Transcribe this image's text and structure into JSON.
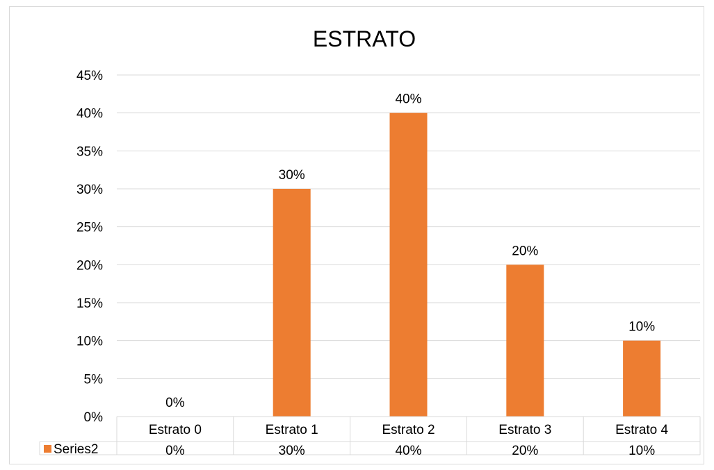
{
  "chart_data": {
    "type": "bar",
    "title": "ESTRATO",
    "categories": [
      "Estrato 0",
      "Estrato 1",
      "Estrato 2",
      "Estrato 3",
      "Estrato 4"
    ],
    "series": [
      {
        "name": "Series2",
        "values": [
          0,
          30,
          40,
          20,
          10
        ],
        "data_labels": [
          "0%",
          "30%",
          "40%",
          "20%",
          "10%"
        ],
        "color": "#ED7D31"
      }
    ],
    "ylim": [
      0,
      45
    ],
    "yticks": [
      0,
      5,
      10,
      15,
      20,
      25,
      30,
      35,
      40,
      45
    ],
    "ytick_labels": [
      "0%",
      "5%",
      "10%",
      "15%",
      "20%",
      "25%",
      "30%",
      "35%",
      "40%",
      "45%"
    ],
    "grid": true,
    "legend": "data-table",
    "data_table": true
  }
}
